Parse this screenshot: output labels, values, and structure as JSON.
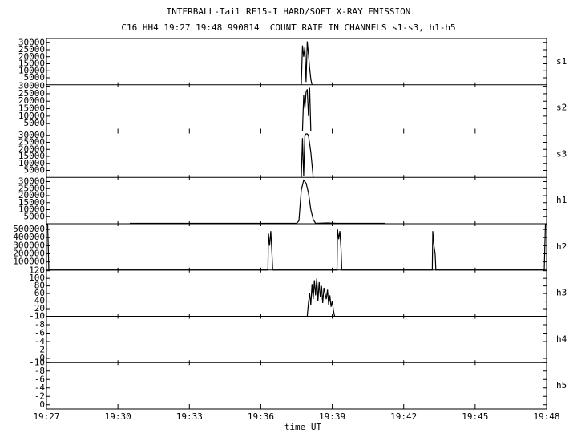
{
  "chart_data": {
    "type": "line",
    "title": "INTERBALL-Tail RF15-I HARD/SOFT X-RAY EMISSION",
    "subtitle": "C16 HH4 19:27 19:48 990814  COUNT RATE IN CHANNELS s1-s3, h1-h5",
    "xlabel": "time UT",
    "xlim": [
      1167,
      1188
    ],
    "xticks": [
      {
        "value": 1167,
        "label": "19:27"
      },
      {
        "value": 1170,
        "label": "19:30"
      },
      {
        "value": 1173,
        "label": "19:33"
      },
      {
        "value": 1176,
        "label": "19:36"
      },
      {
        "value": 1179,
        "label": "19:39"
      },
      {
        "value": 1182,
        "label": "19:42"
      },
      {
        "value": 1185,
        "label": "19:45"
      },
      {
        "value": 1188,
        "label": "19:48"
      }
    ],
    "color": "#000000",
    "series": [
      {
        "name": "s1",
        "ylim": [
          0,
          33000
        ],
        "yticks": [
          5000,
          10000,
          15000,
          20000,
          25000,
          30000
        ],
        "x": [
          1177.7,
          1177.75,
          1177.8,
          1177.85,
          1177.9,
          1177.95,
          1178.0,
          1178.05,
          1178.1,
          1178.15
        ],
        "values": [
          0,
          28000,
          20000,
          27000,
          2000,
          31000,
          22000,
          12000,
          4000,
          0
        ]
      },
      {
        "name": "s2",
        "ylim": [
          0,
          31000
        ],
        "yticks": [
          5000,
          10000,
          15000,
          20000,
          25000,
          30000
        ],
        "x": [
          1177.75,
          1177.8,
          1177.85,
          1177.9,
          1177.95,
          1178.0,
          1178.05,
          1178.1
        ],
        "values": [
          0,
          24000,
          15000,
          26000,
          28000,
          10000,
          29000,
          0
        ]
      },
      {
        "name": "s3",
        "ylim": [
          0,
          33000
        ],
        "yticks": [
          5000,
          10000,
          15000,
          20000,
          25000,
          30000
        ],
        "x": [
          1177.7,
          1177.75,
          1177.8,
          1177.85,
          1177.9,
          1177.95,
          1178.0,
          1178.1,
          1178.2
        ],
        "values": [
          0,
          28000,
          1000,
          30000,
          31000,
          31000,
          30000,
          18000,
          0
        ]
      },
      {
        "name": "h1",
        "ylim": [
          0,
          33000
        ],
        "yticks": [
          5000,
          10000,
          15000,
          20000,
          25000,
          30000
        ],
        "x": [
          1170.5,
          1177.5,
          1177.6,
          1177.7,
          1177.8,
          1177.9,
          1178.0,
          1178.1,
          1178.2,
          1178.3,
          1178.8,
          1179.2,
          1181.2
        ],
        "values": [
          300,
          300,
          2000,
          24000,
          31000,
          29000,
          22000,
          10000,
          3000,
          300,
          600,
          300,
          300
        ]
      },
      {
        "name": "h2",
        "ylim": [
          0,
          570000
        ],
        "yticks": [
          100000,
          200000,
          300000,
          400000,
          500000
        ],
        "x": [
          1167,
          1167.05,
          1167.1,
          1176.3,
          1176.32,
          1176.37,
          1176.42,
          1176.47,
          1176.5,
          1179.2,
          1179.22,
          1179.27,
          1179.32,
          1179.37,
          1179.4,
          1183.2,
          1183.22,
          1183.27,
          1183.32,
          1183.35,
          1187.9,
          1187.95,
          1188
        ],
        "values": [
          560000,
          560000,
          0,
          0,
          450000,
          300000,
          480000,
          200000,
          0,
          0,
          500000,
          380000,
          480000,
          250000,
          0,
          0,
          480000,
          300000,
          200000,
          0,
          0,
          560000,
          560000
        ]
      },
      {
        "name": "h3",
        "ylim": [
          0,
          122
        ],
        "yticks": [
          20,
          40,
          60,
          80,
          100,
          120
        ],
        "x": [
          1177.95,
          1178.0,
          1178.05,
          1178.1,
          1178.15,
          1178.2,
          1178.25,
          1178.3,
          1178.35,
          1178.4,
          1178.45,
          1178.5,
          1178.55,
          1178.6,
          1178.65,
          1178.7,
          1178.75,
          1178.8,
          1178.85,
          1178.9,
          1178.95,
          1179.0,
          1179.05,
          1179.1
        ],
        "values": [
          0,
          35,
          60,
          30,
          85,
          45,
          95,
          55,
          100,
          40,
          90,
          50,
          80,
          35,
          75,
          60,
          45,
          70,
          30,
          55,
          25,
          40,
          15,
          0
        ]
      },
      {
        "name": "h4",
        "ylim": [
          1,
          -10
        ],
        "yticks": [
          -10,
          -8,
          -6,
          -4,
          -2,
          0
        ],
        "x": [],
        "values": []
      },
      {
        "name": "h5",
        "ylim": [
          1,
          -10
        ],
        "yticks": [
          -10,
          -8,
          -6,
          -4,
          -2,
          0
        ],
        "x": [],
        "values": []
      }
    ]
  }
}
